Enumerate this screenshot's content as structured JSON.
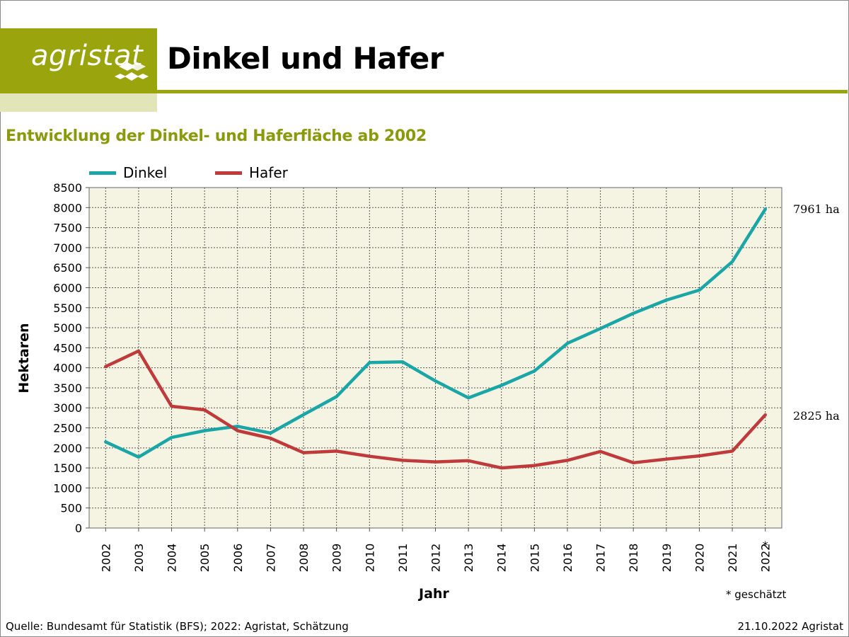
{
  "header": {
    "logo_text": "agristat",
    "title": "Dinkel und Hafer",
    "subtitle": "Entwicklung der Dinkel- und Haferfläche ab 2002"
  },
  "colors": {
    "brand": "#9aa40c",
    "brand_light": "#e2e5b8",
    "plot_bg": "#f5f4e2",
    "dinkel": "#1aa6a6",
    "hafer": "#c0393b"
  },
  "chart_data": {
    "type": "line",
    "xlabel": "Jahr",
    "ylabel": "Hektaren",
    "ylim": [
      0,
      8500
    ],
    "ytick_step": 500,
    "grid": true,
    "legend_position": "top-left",
    "categories": [
      "2002",
      "2003",
      "2004",
      "2005",
      "2006",
      "2007",
      "2008",
      "2009",
      "2010",
      "2011",
      "2012",
      "2013",
      "2014",
      "2015",
      "2016",
      "2017",
      "2018",
      "2019",
      "2020",
      "2021",
      "2022"
    ],
    "estimated_marker": "*",
    "series": [
      {
        "name": "Dinkel",
        "values": [
          2150,
          1770,
          2260,
          2430,
          2540,
          2370,
          2830,
          3280,
          4130,
          4150,
          3670,
          3250,
          3560,
          3920,
          4610,
          4980,
          5360,
          5690,
          5940,
          6650,
          7961
        ],
        "end_label": "7961 ha"
      },
      {
        "name": "Hafer",
        "values": [
          4030,
          4420,
          3040,
          2950,
          2430,
          2240,
          1880,
          1920,
          1790,
          1690,
          1650,
          1680,
          1500,
          1560,
          1690,
          1910,
          1630,
          1720,
          1800,
          1920,
          2825
        ],
        "end_label": "2825 ha"
      }
    ]
  },
  "footer": {
    "source": "Quelle: Bundesamt für Statistik (BFS); 2022: Agristat, Schätzung",
    "date": "21.10.2022 Agristat",
    "note": "* geschätzt"
  }
}
